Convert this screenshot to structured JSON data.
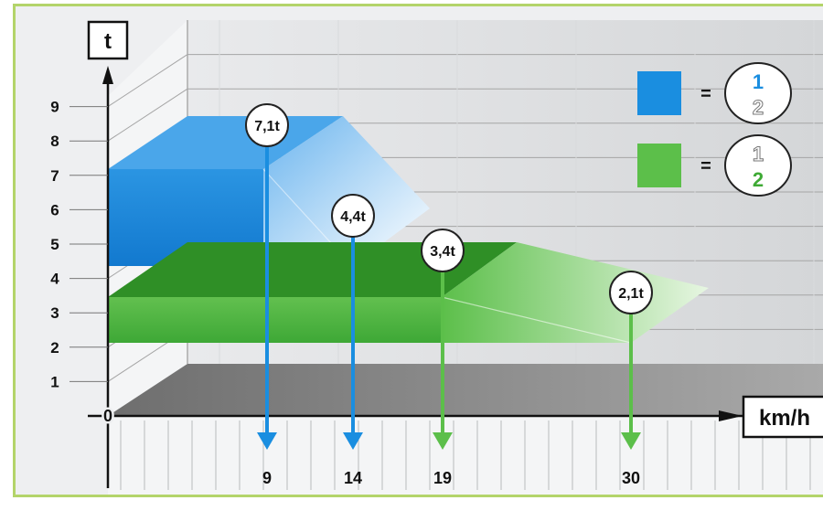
{
  "chart_data": {
    "type": "area",
    "title": "",
    "ylabel": "t",
    "xlabel": "km/h",
    "origin_label": "0",
    "y_ticks": [
      "1",
      "2",
      "3",
      "4",
      "5",
      "6",
      "7",
      "8",
      "9"
    ],
    "x_markers": [
      "9",
      "14",
      "19",
      "30"
    ],
    "ylim": [
      0,
      9
    ],
    "grid": true,
    "legend_position": "top-right",
    "series": [
      {
        "name": "1",
        "color": "#1a8ee0",
        "points": [
          {
            "label": "7,1t",
            "value": 7.1,
            "speed_label": "9"
          },
          {
            "label": "4,4t",
            "value": 4.4,
            "speed_label": "14"
          }
        ]
      },
      {
        "name": "2",
        "color": "#5cbf4a",
        "points": [
          {
            "label": "3,4t",
            "value": 3.4,
            "speed_label": "19"
          },
          {
            "label": "2,1t",
            "value": 2.1,
            "speed_label": "30"
          }
        ]
      }
    ],
    "legend": [
      {
        "color": "#1a8ee0",
        "eq": "=",
        "top": "1",
        "bottom": "2",
        "active": "top",
        "active_color": "#1a8ee0"
      },
      {
        "color": "#5cbf4a",
        "eq": "=",
        "top": "1",
        "bottom": "2",
        "active": "bottom",
        "active_color": "#3faa35"
      }
    ]
  }
}
